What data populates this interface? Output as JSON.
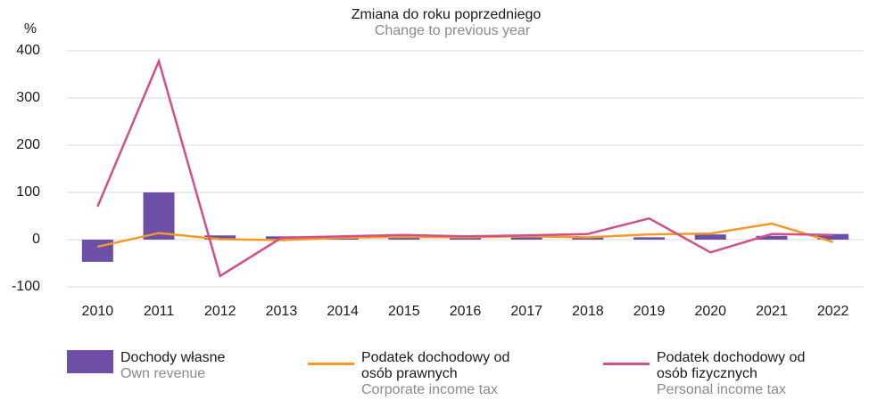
{
  "chart_data": {
    "type": "bar_line",
    "title": "Zmiana do roku poprzedniego",
    "subtitle": "Change to previous year",
    "y_label": "%",
    "categories": [
      "2010",
      "2011",
      "2012",
      "2013",
      "2014",
      "2015",
      "2016",
      "2017",
      "2018",
      "2019",
      "2020",
      "2021",
      "2022"
    ],
    "series": [
      {
        "name": "Dochody własne",
        "name_en": "Own revenue",
        "type": "bar",
        "color": "#6e4fa8",
        "values": [
          -47,
          100,
          9,
          7,
          3,
          5,
          6,
          5,
          5,
          5,
          11,
          8,
          12
        ]
      },
      {
        "name": "Podatek dochodowy od osób prawnych",
        "name_en": "Corporate income tax",
        "type": "line",
        "color": "#f39a25",
        "values": [
          -15,
          14,
          1,
          -1,
          4,
          6,
          5,
          7,
          5,
          11,
          13,
          34,
          -5
        ]
      },
      {
        "name": "Podatek dochodowy od osób fizycznych",
        "name_en": "Personal income tax",
        "type": "line",
        "color": "#d0508a",
        "values": [
          70,
          378,
          -77,
          4,
          7,
          10,
          7,
          9,
          12,
          45,
          -27,
          12,
          10
        ]
      }
    ],
    "ylim": [
      -100,
      400
    ],
    "yticks": [
      -100,
      0,
      100,
      200,
      300,
      400
    ],
    "grid": true
  }
}
